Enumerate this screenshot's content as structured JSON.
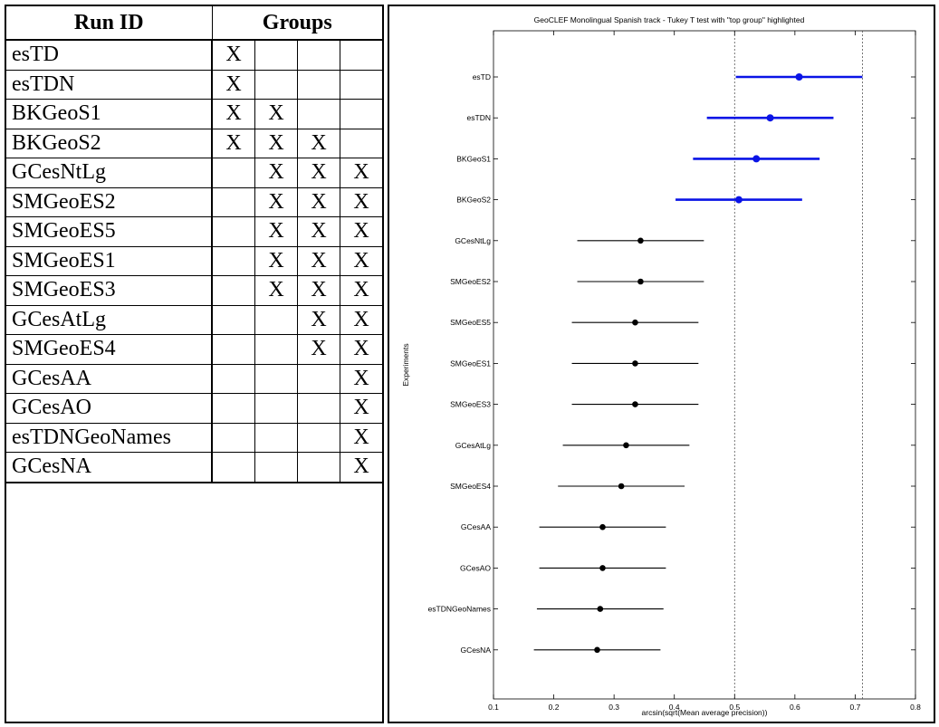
{
  "table": {
    "header_run": "Run ID",
    "header_groups": "Groups",
    "rows": [
      {
        "name": "esTD",
        "marks": [
          "X",
          "",
          "",
          ""
        ]
      },
      {
        "name": "esTDN",
        "marks": [
          "X",
          "",
          "",
          ""
        ]
      },
      {
        "name": "BKGeoS1",
        "marks": [
          "X",
          "X",
          "",
          ""
        ]
      },
      {
        "name": "BKGeoS2",
        "marks": [
          "X",
          "X",
          "X",
          ""
        ]
      },
      {
        "name": "GCesNtLg",
        "marks": [
          "",
          "X",
          "X",
          "X"
        ]
      },
      {
        "name": "SMGeoES2",
        "marks": [
          "",
          "X",
          "X",
          "X"
        ]
      },
      {
        "name": "SMGeoES5",
        "marks": [
          "",
          "X",
          "X",
          "X"
        ]
      },
      {
        "name": "SMGeoES1",
        "marks": [
          "",
          "X",
          "X",
          "X"
        ]
      },
      {
        "name": "SMGeoES3",
        "marks": [
          "",
          "X",
          "X",
          "X"
        ]
      },
      {
        "name": "GCesAtLg",
        "marks": [
          "",
          "",
          "X",
          "X"
        ]
      },
      {
        "name": "SMGeoES4",
        "marks": [
          "",
          "",
          "X",
          "X"
        ]
      },
      {
        "name": "GCesAA",
        "marks": [
          "",
          "",
          "",
          "X"
        ]
      },
      {
        "name": "GCesAO",
        "marks": [
          "",
          "",
          "",
          "X"
        ]
      },
      {
        "name": "esTDNGeoNames",
        "marks": [
          "",
          "",
          "",
          "X"
        ]
      },
      {
        "name": "GCesNA",
        "marks": [
          "",
          "",
          "",
          "X"
        ]
      }
    ]
  },
  "chart_data": {
    "type": "scatter",
    "subtype": "interval-plot",
    "title": "GeoCLEF Monolingual Spanish track - Tukey T test with \"top group\" highlighted",
    "xlabel": "arcsin(sqrt(Mean average precision))",
    "ylabel": "Experiments",
    "xlim": [
      0.1,
      0.8
    ],
    "xticks": [
      0.1,
      0.2,
      0.3,
      0.4,
      0.5,
      0.6,
      0.7,
      0.8
    ],
    "xtick_labels": [
      "0.1",
      "0.2",
      "0.3",
      "0.4",
      "0.5",
      "0.6",
      "0.7",
      "0.8"
    ],
    "reference_lines": [
      0.5,
      0.712
    ],
    "colors": {
      "top_group": "#0a14e6",
      "other": "#000000"
    },
    "series": [
      {
        "label": "esTD",
        "mean": 0.607,
        "low": 0.502,
        "high": 0.712,
        "top_group": true
      },
      {
        "label": "esTDN",
        "mean": 0.559,
        "low": 0.454,
        "high": 0.664,
        "top_group": true
      },
      {
        "label": "BKGeoS1",
        "mean": 0.536,
        "low": 0.431,
        "high": 0.641,
        "top_group": true
      },
      {
        "label": "BKGeoS2",
        "mean": 0.507,
        "low": 0.402,
        "high": 0.612,
        "top_group": true
      },
      {
        "label": "GCesNtLg",
        "mean": 0.344,
        "low": 0.239,
        "high": 0.449,
        "top_group": false
      },
      {
        "label": "SMGeoES2",
        "mean": 0.344,
        "low": 0.239,
        "high": 0.449,
        "top_group": false
      },
      {
        "label": "SMGeoES5",
        "mean": 0.335,
        "low": 0.23,
        "high": 0.44,
        "top_group": false
      },
      {
        "label": "SMGeoES1",
        "mean": 0.335,
        "low": 0.23,
        "high": 0.44,
        "top_group": false
      },
      {
        "label": "SMGeoES3",
        "mean": 0.335,
        "low": 0.23,
        "high": 0.44,
        "top_group": false
      },
      {
        "label": "GCesAtLg",
        "mean": 0.32,
        "low": 0.215,
        "high": 0.425,
        "top_group": false
      },
      {
        "label": "SMGeoES4",
        "mean": 0.312,
        "low": 0.207,
        "high": 0.417,
        "top_group": false
      },
      {
        "label": "GCesAA",
        "mean": 0.281,
        "low": 0.176,
        "high": 0.386,
        "top_group": false
      },
      {
        "label": "GCesAO",
        "mean": 0.281,
        "low": 0.176,
        "high": 0.386,
        "top_group": false
      },
      {
        "label": "esTDNGeoNames",
        "mean": 0.277,
        "low": 0.172,
        "high": 0.382,
        "top_group": false
      },
      {
        "label": "GCesNA",
        "mean": 0.272,
        "low": 0.167,
        "high": 0.377,
        "top_group": false
      }
    ]
  }
}
